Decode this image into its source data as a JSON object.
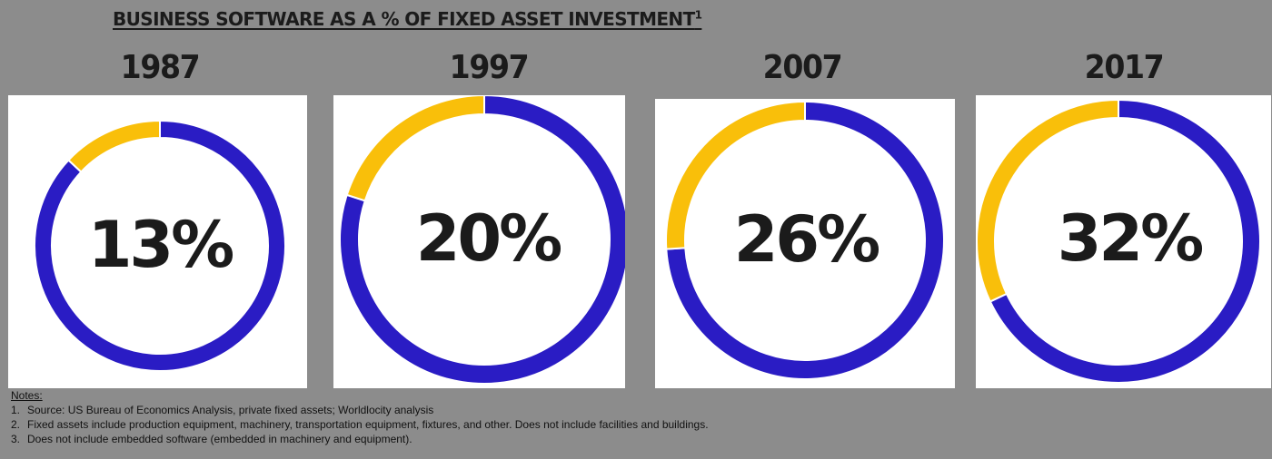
{
  "chart_data": {
    "type": "pie",
    "title": "BUSINESS SOFTWARE AS A % OF FIXED ASSET INVESTMENT",
    "title_footnote": "1",
    "colors": {
      "software": "#f9bf0a",
      "other": "#2a1cc4"
    },
    "charts": [
      {
        "label": "1987",
        "value": 13,
        "center_label": "13%"
      },
      {
        "label": "1997",
        "value": 20,
        "center_label": "20%"
      },
      {
        "label": "2007",
        "value": 26,
        "center_label": "26%"
      },
      {
        "label": "2017",
        "value": 32,
        "center_label": "32%"
      }
    ]
  },
  "notes": {
    "heading": "Notes:",
    "items": [
      {
        "num": "1.",
        "text": "Source: US Bureau of Economics Analysis, private fixed assets; Worldlocity analysis"
      },
      {
        "num": "2.",
        "text": "Fixed assets include production equipment, machinery, transportation equipment, fixtures, and other. Does not include facilities and buildings."
      },
      {
        "num": "3.",
        "text": "Does not include embedded software (embedded in machinery and equipment)."
      }
    ]
  }
}
